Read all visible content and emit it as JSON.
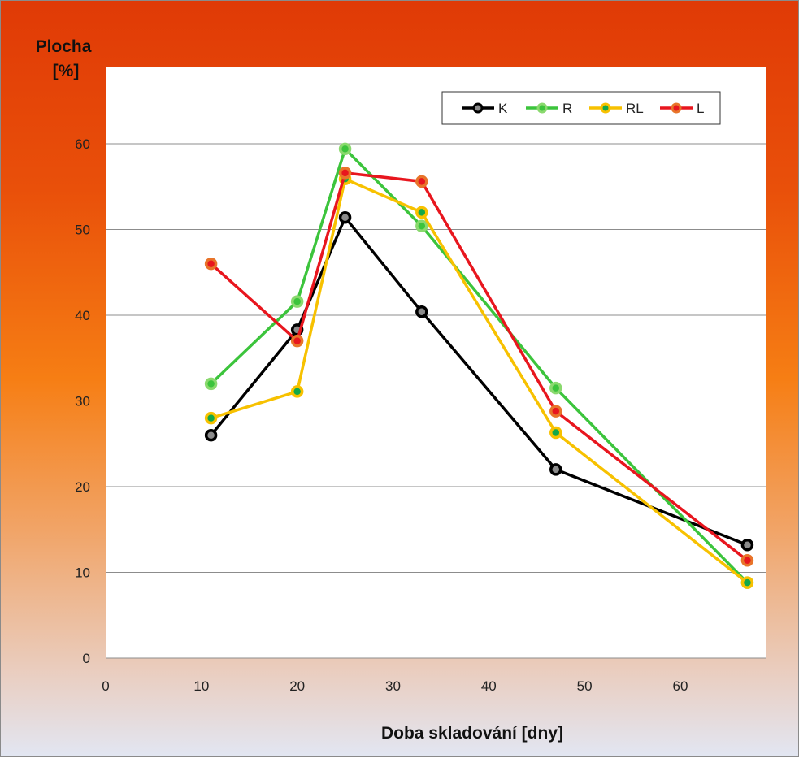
{
  "chart_data": {
    "type": "line",
    "title": "",
    "ylabel": [
      "Plocha",
      "[%]"
    ],
    "xlabel": "Doba skladování [dny]",
    "xlim": [
      0,
      69
    ],
    "ylim": [
      0,
      60
    ],
    "xticks": [
      0,
      10,
      20,
      30,
      40,
      50,
      60
    ],
    "yticks": [
      0,
      10,
      20,
      30,
      40,
      50,
      60
    ],
    "grid": "horizontal",
    "legend_position": "top-right",
    "series": [
      {
        "name": "K",
        "line_color": "#000000",
        "marker_fill": "#8c8c8c",
        "marker_edge": "#000000",
        "points": [
          [
            11,
            26
          ],
          [
            20,
            38.3
          ],
          [
            25,
            51.4
          ],
          [
            33,
            40.4
          ],
          [
            47,
            22
          ],
          [
            67,
            13.2
          ]
        ]
      },
      {
        "name": "R",
        "line_color": "#3cc43c",
        "marker_fill": "#3cc43c",
        "marker_edge": "#8ad96e",
        "points": [
          [
            11,
            32
          ],
          [
            20,
            41.6
          ],
          [
            25,
            59.4
          ],
          [
            33,
            50.4
          ],
          [
            47,
            31.5
          ],
          [
            67,
            8.8
          ]
        ]
      },
      {
        "name": "RL",
        "line_color": "#f7c100",
        "marker_fill": "#12a84a",
        "marker_edge": "#f7c100",
        "points": [
          [
            11,
            28
          ],
          [
            20,
            31.1
          ],
          [
            25,
            55.9
          ],
          [
            33,
            52
          ],
          [
            47,
            26.3
          ],
          [
            67,
            8.8
          ]
        ]
      },
      {
        "name": "L",
        "line_color": "#e8161e",
        "marker_fill": "#e8161e",
        "marker_edge": "#e8742a",
        "points": [
          [
            11,
            46
          ],
          [
            20,
            37
          ],
          [
            25,
            56.6
          ],
          [
            33,
            55.6
          ],
          [
            47,
            28.8
          ],
          [
            67,
            11.4
          ]
        ]
      }
    ]
  }
}
